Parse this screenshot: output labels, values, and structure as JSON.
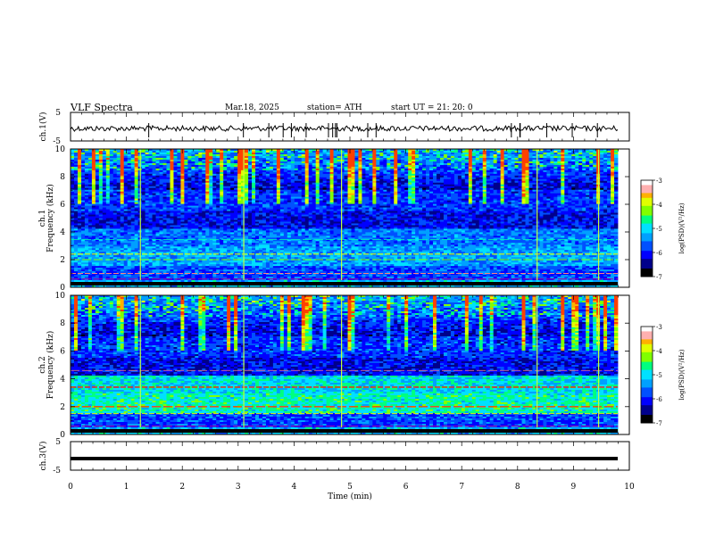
{
  "header": {
    "title": "VLF  Spectra",
    "date": "Mar.18, 2025",
    "station": "station= ATH",
    "start_ut": "start  UT  =    21: 20: 0"
  },
  "colors": {
    "spectrogram_scale": [
      "#000000",
      "#00008b",
      "#0000ff",
      "#0050ff",
      "#00a0ff",
      "#00e0ff",
      "#00ff80",
      "#80ff00",
      "#e0ff00",
      "#ffb000",
      "#ff4000",
      "#d00000",
      "#ffffff"
    ]
  },
  "chart_data": [
    {
      "type": "line",
      "panel": "ch1-waveform",
      "ylabel": "ch.1(V)",
      "yticks": [
        "5",
        "-5"
      ],
      "ylim": [
        -5,
        5
      ],
      "x": [
        0,
        9.8
      ],
      "description_values": {
        "mean": 0,
        "amplitude_approx": 1.5
      }
    },
    {
      "type": "heatmap",
      "panel": "ch1-spectrogram",
      "ylabel_top": "ch.1",
      "ylabel": "Frequency  (kHz)",
      "yticks": [
        "0",
        "2",
        "4",
        "6",
        "8",
        "10"
      ],
      "ylim": [
        0,
        10
      ],
      "xlim": [
        0,
        10
      ],
      "colorbar_label": "log(PSD)(V²/Hz)",
      "colorbar_ticks": [
        "-3",
        "-4",
        "-5",
        "-6",
        "-7"
      ],
      "colorbar_range": [
        -7,
        -3
      ]
    },
    {
      "type": "heatmap",
      "panel": "ch2-spectrogram",
      "ylabel_top": "ch.2",
      "ylabel": "Frequency  (kHz)",
      "yticks": [
        "0",
        "2",
        "4",
        "6",
        "8",
        "10"
      ],
      "ylim": [
        0,
        10
      ],
      "xlim": [
        0,
        10
      ],
      "colorbar_label": "log(PSD)(V²/Hz)",
      "colorbar_ticks": [
        "-3",
        "-4",
        "-5",
        "-6",
        "-7"
      ],
      "colorbar_range": [
        -7,
        -3
      ]
    },
    {
      "type": "line",
      "panel": "ch3-waveform",
      "ylabel": "ch.3(V)",
      "yticks": [
        "5",
        "-5"
      ],
      "ylim": [
        -5,
        5
      ],
      "x": [
        0,
        9.8
      ],
      "description_values": {
        "mean": 0
      }
    }
  ],
  "xaxis": {
    "label": "Time  (min)",
    "ticks": [
      "0",
      "1",
      "2",
      "3",
      "4",
      "5",
      "6",
      "7",
      "8",
      "9",
      "10"
    ],
    "xlim": [
      0,
      10
    ]
  }
}
